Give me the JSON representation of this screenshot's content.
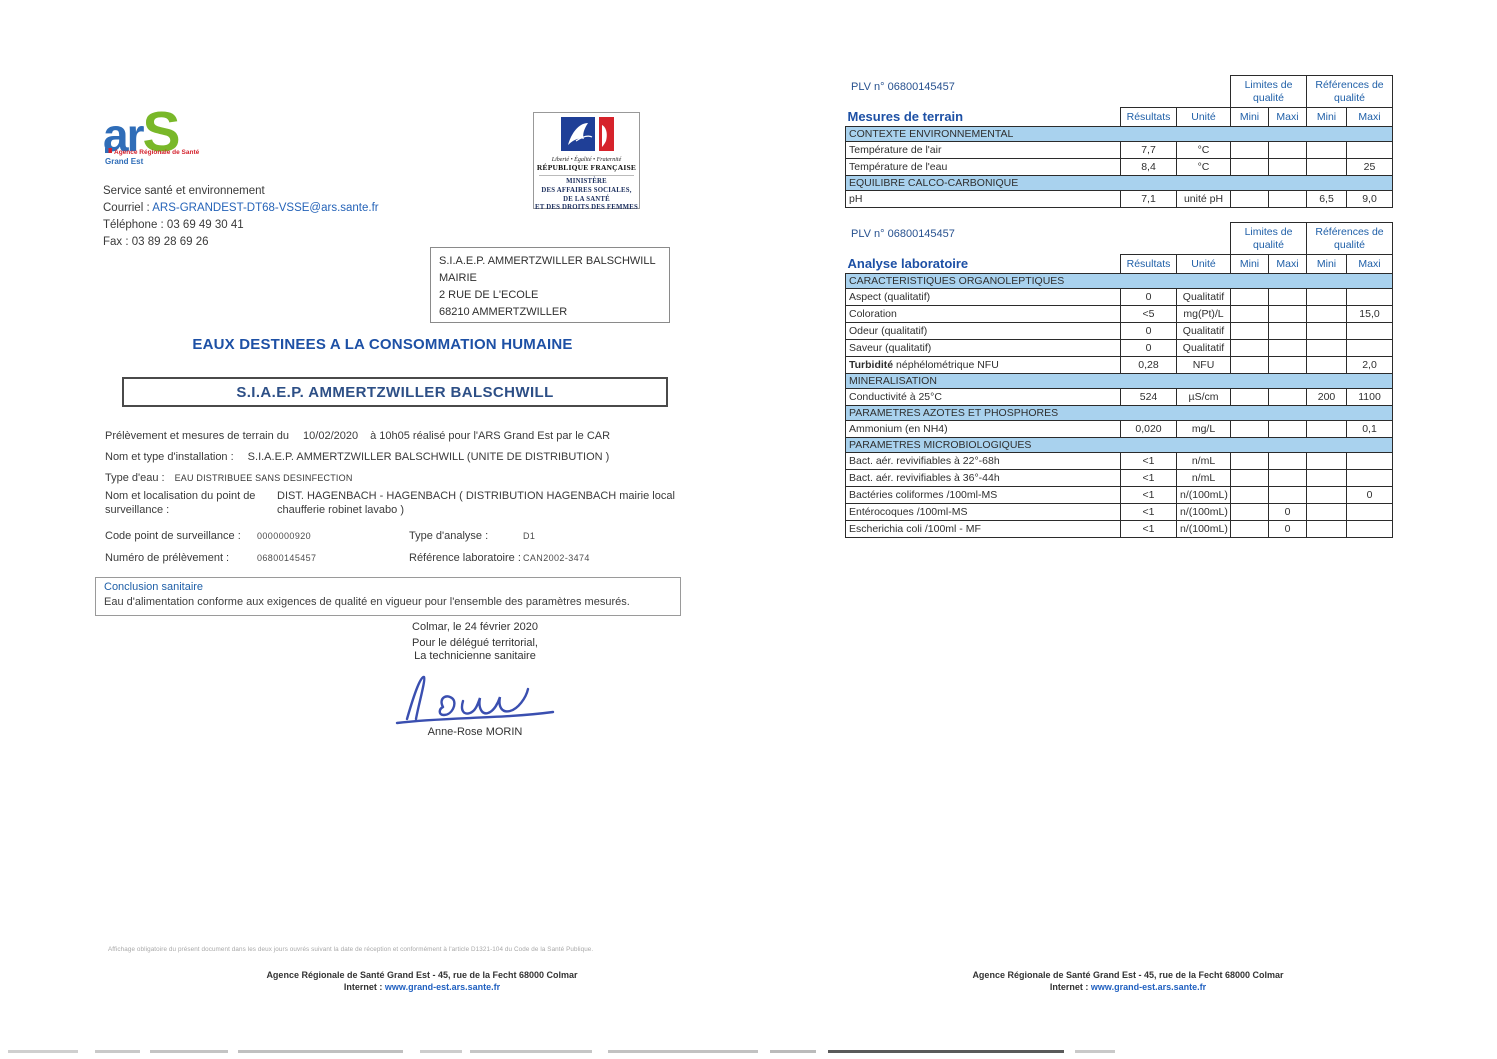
{
  "left": {
    "ars_logo": {
      "ar": "ar",
      "s": "S",
      "tagline": "Agence Régionale de Santé",
      "region": "Grand Est"
    },
    "ministry": {
      "motto": "Liberté • Égalité • Fraternité",
      "republic": "RÉPUBLIQUE FRANÇAISE",
      "lines": [
        "MINISTÈRE",
        "DES AFFAIRES SOCIALES,",
        "DE LA SANTÉ",
        "ET DES DROITS DES FEMMES"
      ]
    },
    "contact": {
      "service": "Service santé et environnement",
      "courriel_label": "Courriel : ",
      "courriel": "ARS-GRANDEST-DT68-VSSE@ars.sante.fr",
      "telephone": "Téléphone : 03 69 49 30 41",
      "fax": "Fax : 03 89 28 69 26"
    },
    "recipient": [
      "S.I.A.E.P. AMMERTZWILLER BALSCHWILL",
      "MAIRIE",
      "2 RUE DE L'ECOLE",
      "68210 AMMERTZWILLER"
    ],
    "title": "EAUX DESTINEES A LA CONSOMMATION HUMAINE",
    "subtitle": "S.I.A.E.P. AMMERTZWILLER BALSCHWILL",
    "info": {
      "l1_label": "Prélèvement et mesures de terrain du",
      "l1_date": "10/02/2020",
      "l1_rest": "à 10h05  réalisé pour l'ARS Grand Est par le CAR",
      "l2_label": "Nom et type d'installation :",
      "l2_value": "S.I.A.E.P. AMMERTZWILLER BALSCHWILL (UNITE DE DISTRIBUTION )",
      "l3_label": "Type d'eau :",
      "l3_value": "EAU DISTRIBUEE SANS DESINFECTION",
      "l4_label": "Nom et localisation du point de surveillance :",
      "l4_value": "DIST. HAGENBACH - HAGENBACH ( DISTRIBUTION HAGENBACH mairie local chaufferie robinet lavabo )"
    },
    "codes": {
      "c1_label": "Code point de surveillance :",
      "c1_value": "0000000920",
      "c2_label": "Numéro de prélèvement :",
      "c2_value": "06800145457",
      "c3_label": "Type d'analyse :",
      "c3_value": "D1",
      "c4_label": "Référence laboratoire :",
      "c4_value": "CAN2002-3474"
    },
    "conclusion": {
      "heading": "Conclusion sanitaire",
      "text": "Eau d'alimentation conforme aux exigences de qualité en vigueur pour  l'ensemble des paramètres mesurés."
    },
    "signature": {
      "place_date": "Colmar, le 24 février 2020",
      "line1": "Pour le délégué territorial,",
      "line2": "La technicienne sanitaire",
      "name": "Anne-Rose MORIN"
    },
    "footer": {
      "notice": "Affichage obligatoire du présent document dans les deux jours ouvrés suivant la date de réception et conformément à l'article D1321-104 du Code de la Santé Publique.",
      "address": "Agence Régionale de Santé Grand Est - 45, rue de la Fecht 68000 Colmar",
      "internet_label": "Internet : ",
      "internet_url": "www.grand-est.ars.sante.fr"
    }
  },
  "right": {
    "footer": {
      "address": "Agence Régionale de Santé Grand Est - 45, rue de la Fecht 68000 Colmar",
      "internet_label": "Internet : ",
      "internet_url": "www.grand-est.ars.sante.fr"
    },
    "tables": [
      {
        "plv": "PLV n° 06800145457",
        "title": "Mesures de terrain",
        "group1": "Limites de qualité",
        "group2": "Références de qualité",
        "col_headers": [
          "Résultats",
          "Unité",
          "Mini",
          "Maxi",
          "Mini",
          "Maxi"
        ],
        "rows": [
          {
            "type": "section",
            "label": "CONTEXTE ENVIRONNEMENTAL"
          },
          {
            "type": "data",
            "label": "Température de l'air",
            "res": "7,7",
            "unit": "°C",
            "lmin": "",
            "lmax": "",
            "rmin": "",
            "rmax": ""
          },
          {
            "type": "data",
            "label": "Température de l'eau",
            "res": "8,4",
            "unit": "°C",
            "lmin": "",
            "lmax": "",
            "rmin": "",
            "rmax": "25"
          },
          {
            "type": "section",
            "label": "EQUILIBRE CALCO-CARBONIQUE"
          },
          {
            "type": "data",
            "label": "pH",
            "res": "7,1",
            "unit": "unité pH",
            "lmin": "",
            "lmax": "",
            "rmin": "6,5",
            "rmax": "9,0"
          }
        ]
      },
      {
        "plv": "PLV n° 06800145457",
        "title": "Analyse laboratoire",
        "group1": "Limites de qualité",
        "group2": "Références de qualité",
        "col_headers": [
          "Résultats",
          "Unité",
          "Mini",
          "Maxi",
          "Mini",
          "Maxi"
        ],
        "rows": [
          {
            "type": "section",
            "label": "CARACTERISTIQUES ORGANOLEPTIQUES"
          },
          {
            "type": "data",
            "label": "Aspect (qualitatif)",
            "res": "0",
            "unit": "Qualitatif",
            "lmin": "",
            "lmax": "",
            "rmin": "",
            "rmax": ""
          },
          {
            "type": "data",
            "label": "Coloration",
            "res": "<5",
            "unit": "mg(Pt)/L",
            "lmin": "",
            "lmax": "",
            "rmin": "",
            "rmax": "15,0"
          },
          {
            "type": "data",
            "label": "Odeur (qualitatif)",
            "res": "0",
            "unit": "Qualitatif",
            "lmin": "",
            "lmax": "",
            "rmin": "",
            "rmax": ""
          },
          {
            "type": "data",
            "label": "Saveur (qualitatif)",
            "res": "0",
            "unit": "Qualitatif",
            "lmin": "",
            "lmax": "",
            "rmin": "",
            "rmax": ""
          },
          {
            "type": "data",
            "labelBold": "Turbidité",
            "label": " néphélométrique NFU",
            "res": "0,28",
            "unit": "NFU",
            "lmin": "",
            "lmax": "",
            "rmin": "",
            "rmax": "2,0"
          },
          {
            "type": "section",
            "label": "MINERALISATION"
          },
          {
            "type": "data",
            "label": "Conductivité à 25°C",
            "res": "524",
            "unit": "µS/cm",
            "lmin": "",
            "lmax": "",
            "rmin": "200",
            "rmax": "1100"
          },
          {
            "type": "section",
            "label": "PARAMETRES AZOTES ET PHOSPHORES"
          },
          {
            "type": "data",
            "label": "Ammonium (en NH4)",
            "res": "0,020",
            "unit": "mg/L",
            "lmin": "",
            "lmax": "",
            "rmin": "",
            "rmax": "0,1"
          },
          {
            "type": "section",
            "label": "PARAMETRES MICROBIOLOGIQUES"
          },
          {
            "type": "data",
            "label": "Bact. aér. revivifiables à 22°-68h",
            "res": "<1",
            "unit": "n/mL",
            "lmin": "",
            "lmax": "",
            "rmin": "",
            "rmax": ""
          },
          {
            "type": "data",
            "label": "Bact. aér. revivifiables à 36°-44h",
            "res": "<1",
            "unit": "n/mL",
            "lmin": "",
            "lmax": "",
            "rmin": "",
            "rmax": ""
          },
          {
            "type": "data",
            "label": "Bactéries coliformes /100ml-MS",
            "res": "<1",
            "unit": "n/(100mL)",
            "lmin": "",
            "lmax": "",
            "rmin": "",
            "rmax": "0"
          },
          {
            "type": "data",
            "label": "Entérocoques /100ml-MS",
            "res": "<1",
            "unit": "n/(100mL)",
            "lmin": "",
            "lmax": "0",
            "rmin": "",
            "rmax": ""
          },
          {
            "type": "data",
            "label": "Escherichia coli /100ml - MF",
            "res": "<1",
            "unit": "n/(100mL)",
            "lmin": "",
            "lmax": "0",
            "rmin": "",
            "rmax": ""
          }
        ]
      }
    ]
  }
}
